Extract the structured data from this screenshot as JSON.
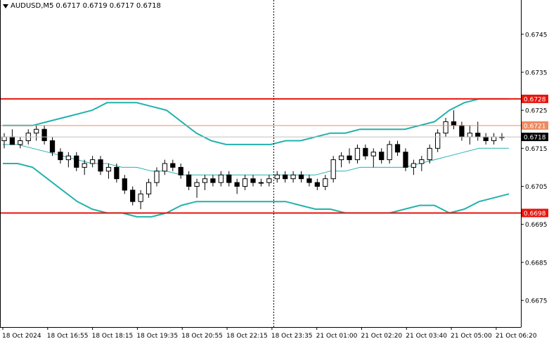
{
  "header": {
    "symbol": "AUDUSD,M5",
    "ohlc": "0.6717 0.6719 0.6717 0.6718"
  },
  "chart_data": {
    "type": "candlestick",
    "symbol": "AUDUSD",
    "timeframe": "M5",
    "ylim": [
      0.6668,
      0.6754
    ],
    "yticks": [
      "0.6675",
      "0.6685",
      "0.6695",
      "0.6705",
      "0.6715",
      "0.6725",
      "0.6735",
      "0.6745"
    ],
    "xticks": [
      "18 Oct 2024",
      "18 Oct 16:55",
      "18 Oct 18:15",
      "18 Oct 19:35",
      "18 Oct 20:55",
      "18 Oct 22:15",
      "18 Oct 23:35",
      "21 Oct 01:00",
      "21 Oct 02:20",
      "21 Oct 03:40",
      "21 Oct 05:00",
      "21 Oct 06:20"
    ],
    "session_separator_label": "18 Oct 23:35",
    "levels": [
      {
        "label": "0.6728",
        "value": 0.6728,
        "color": "#e8140c",
        "style": "thick"
      },
      {
        "label": "0.6721",
        "value": 0.6721,
        "color": "#ee8a60",
        "style": "thin"
      },
      {
        "label": "0.6698",
        "value": 0.6698,
        "color": "#e8140c",
        "style": "thick"
      }
    ],
    "current_price": {
      "label": "0.6718",
      "value": 0.6718
    },
    "bollinger": {
      "upper": [
        0.6721,
        0.6721,
        0.6721,
        0.6722,
        0.6723,
        0.6724,
        0.6725,
        0.6727,
        0.6727,
        0.6727,
        0.6726,
        0.6725,
        0.6722,
        0.6719,
        0.6717,
        0.6716,
        0.6716,
        0.6716,
        0.6716,
        0.6717,
        0.6717,
        0.6718,
        0.6719,
        0.6719,
        0.672,
        0.672,
        0.672,
        0.672,
        0.6721,
        0.6722,
        0.6725,
        0.6727,
        0.6728,
        0.6728,
        0.6728
      ],
      "middle": [
        0.6716,
        0.6716,
        0.6715,
        0.6714,
        0.6713,
        0.6712,
        0.6711,
        0.6711,
        0.671,
        0.671,
        0.6709,
        0.6709,
        0.6708,
        0.6708,
        0.6708,
        0.6708,
        0.6708,
        0.6708,
        0.6708,
        0.6708,
        0.6708,
        0.6708,
        0.6709,
        0.6709,
        0.671,
        0.671,
        0.671,
        0.671,
        0.6711,
        0.6712,
        0.6713,
        0.6714,
        0.6715,
        0.6715,
        0.6715
      ],
      "lower": [
        0.6711,
        0.6711,
        0.671,
        0.6707,
        0.6704,
        0.6701,
        0.6699,
        0.6698,
        0.6698,
        0.6697,
        0.6697,
        0.6698,
        0.67,
        0.6701,
        0.6701,
        0.6701,
        0.6701,
        0.6701,
        0.6701,
        0.6701,
        0.67,
        0.6699,
        0.6699,
        0.6698,
        0.6698,
        0.6698,
        0.6698,
        0.6699,
        0.67,
        0.67,
        0.6698,
        0.6699,
        0.6701,
        0.6702,
        0.6703
      ]
    },
    "candles": [
      [
        0.6717,
        0.6719,
        0.6715,
        0.6718
      ],
      [
        0.6718,
        0.672,
        0.6716,
        0.6716
      ],
      [
        0.6716,
        0.6718,
        0.6715,
        0.6717
      ],
      [
        0.6717,
        0.672,
        0.6716,
        0.6719
      ],
      [
        0.6719,
        0.6721,
        0.6717,
        0.672
      ],
      [
        0.672,
        0.6721,
        0.6716,
        0.6717
      ],
      [
        0.6717,
        0.6718,
        0.6713,
        0.6714
      ],
      [
        0.6714,
        0.6715,
        0.6711,
        0.6712
      ],
      [
        0.6712,
        0.6714,
        0.671,
        0.6713
      ],
      [
        0.6713,
        0.6714,
        0.6709,
        0.671
      ],
      [
        0.671,
        0.6712,
        0.6708,
        0.6711
      ],
      [
        0.6711,
        0.6713,
        0.671,
        0.6712
      ],
      [
        0.6712,
        0.6713,
        0.6708,
        0.6709
      ],
      [
        0.6709,
        0.6711,
        0.6707,
        0.671
      ],
      [
        0.671,
        0.6711,
        0.6706,
        0.6707
      ],
      [
        0.6707,
        0.6708,
        0.6703,
        0.6704
      ],
      [
        0.6704,
        0.6705,
        0.67,
        0.6701
      ],
      [
        0.6701,
        0.6704,
        0.6699,
        0.6703
      ],
      [
        0.6703,
        0.6707,
        0.6702,
        0.6706
      ],
      [
        0.6706,
        0.671,
        0.6705,
        0.6709
      ],
      [
        0.6709,
        0.6712,
        0.6708,
        0.6711
      ],
      [
        0.6711,
        0.6712,
        0.6709,
        0.671
      ],
      [
        0.671,
        0.6711,
        0.6707,
        0.6708
      ],
      [
        0.6708,
        0.6709,
        0.6704,
        0.6705
      ],
      [
        0.6705,
        0.6707,
        0.6702,
        0.6706
      ],
      [
        0.6706,
        0.6708,
        0.6704,
        0.6707
      ],
      [
        0.6707,
        0.6708,
        0.6705,
        0.6706
      ],
      [
        0.6706,
        0.6709,
        0.6705,
        0.6708
      ],
      [
        0.6708,
        0.6709,
        0.6705,
        0.6706
      ],
      [
        0.6706,
        0.6707,
        0.6703,
        0.6705
      ],
      [
        0.6705,
        0.6708,
        0.6704,
        0.6707
      ],
      [
        0.6707,
        0.6708,
        0.6705,
        0.6706
      ],
      [
        0.6706,
        0.6707,
        0.6705,
        0.6706
      ],
      [
        0.6706,
        0.6708,
        0.6705,
        0.6707
      ],
      [
        0.6707,
        0.6709,
        0.6706,
        0.6708
      ],
      [
        0.6708,
        0.6709,
        0.6706,
        0.6707
      ],
      [
        0.6707,
        0.6709,
        0.6706,
        0.6708
      ],
      [
        0.6708,
        0.6709,
        0.6706,
        0.6707
      ],
      [
        0.6707,
        0.6708,
        0.6705,
        0.6706
      ],
      [
        0.6706,
        0.6707,
        0.6704,
        0.6705
      ],
      [
        0.6705,
        0.6708,
        0.6704,
        0.6707
      ],
      [
        0.6707,
        0.6713,
        0.6706,
        0.6712
      ],
      [
        0.6712,
        0.6714,
        0.671,
        0.6713
      ],
      [
        0.6713,
        0.6715,
        0.6711,
        0.6712
      ],
      [
        0.6712,
        0.6716,
        0.6711,
        0.6715
      ],
      [
        0.6715,
        0.6716,
        0.6712,
        0.6713
      ],
      [
        0.6713,
        0.6715,
        0.671,
        0.6714
      ],
      [
        0.6714,
        0.6715,
        0.6711,
        0.6712
      ],
      [
        0.6712,
        0.6717,
        0.6711,
        0.6716
      ],
      [
        0.6716,
        0.6717,
        0.6713,
        0.6714
      ],
      [
        0.6714,
        0.6715,
        0.6709,
        0.671
      ],
      [
        0.671,
        0.6712,
        0.6708,
        0.6711
      ],
      [
        0.6711,
        0.6713,
        0.6709,
        0.6712
      ],
      [
        0.6712,
        0.6716,
        0.6711,
        0.6715
      ],
      [
        0.6715,
        0.672,
        0.6714,
        0.6719
      ],
      [
        0.6719,
        0.6723,
        0.6718,
        0.6722
      ],
      [
        0.6722,
        0.6725,
        0.672,
        0.6721
      ],
      [
        0.6721,
        0.6722,
        0.6717,
        0.6718
      ],
      [
        0.6718,
        0.6721,
        0.6716,
        0.6719
      ],
      [
        0.6719,
        0.6722,
        0.6717,
        0.6718
      ],
      [
        0.6718,
        0.6719,
        0.6716,
        0.6717
      ],
      [
        0.6717,
        0.6719,
        0.6716,
        0.6718
      ],
      [
        0.6718,
        0.6719,
        0.6717,
        0.6718
      ]
    ]
  }
}
